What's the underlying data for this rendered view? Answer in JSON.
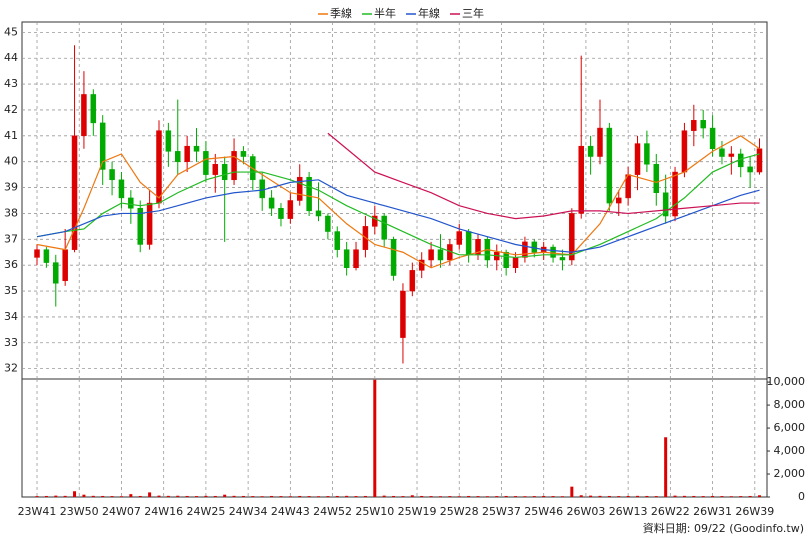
{
  "chart_data": {
    "type": "candlestick",
    "source": "資料日期: 09/22 (Goodinfo.tw)",
    "up_color": "#dd0000",
    "down_color": "#00aa00",
    "grid": true,
    "xlim": [
      -3.2,
      155.6
    ],
    "xticks": [
      {
        "value": 0,
        "label": "23W41"
      },
      {
        "value": 9,
        "label": "23W50"
      },
      {
        "value": 18,
        "label": "24W07"
      },
      {
        "value": 27,
        "label": "24W16"
      },
      {
        "value": 36,
        "label": "24W25"
      },
      {
        "value": 45,
        "label": "24W34"
      },
      {
        "value": 54,
        "label": "24W43"
      },
      {
        "value": 63,
        "label": "24W52"
      },
      {
        "value": 72,
        "label": "25W10"
      },
      {
        "value": 81,
        "label": "25W19"
      },
      {
        "value": 90,
        "label": "25W28"
      },
      {
        "value": 99,
        "label": "25W37"
      },
      {
        "value": 108,
        "label": "25W46"
      },
      {
        "value": 117,
        "label": "26W03"
      },
      {
        "value": 126,
        "label": "26W13"
      },
      {
        "value": 135,
        "label": "26W22"
      },
      {
        "value": 144,
        "label": "26W31"
      },
      {
        "value": 153,
        "label": "26W39"
      }
    ],
    "ylim": [
      31.6,
      45.4
    ],
    "yticks": [
      32,
      33,
      34,
      35,
      36,
      37,
      38,
      39,
      40,
      41,
      42,
      43,
      44,
      45
    ],
    "x": [
      0,
      2,
      4,
      6,
      8,
      10,
      12,
      14,
      16,
      18,
      20,
      22,
      24,
      26,
      28,
      30,
      32,
      34,
      36,
      38,
      40,
      42,
      44,
      46,
      48,
      50,
      52,
      54,
      56,
      58,
      60,
      62,
      64,
      66,
      68,
      70,
      72,
      74,
      76,
      78,
      80,
      82,
      84,
      86,
      88,
      90,
      92,
      94,
      96,
      98,
      100,
      102,
      104,
      106,
      108,
      110,
      112,
      114,
      116,
      118,
      120,
      122,
      124,
      126,
      128,
      130,
      132,
      134,
      136,
      138,
      140,
      142,
      144,
      146,
      148,
      150,
      152,
      154
    ],
    "open": [
      36.3,
      36.6,
      36.1,
      35.4,
      36.6,
      41.0,
      42.6,
      41.5,
      39.7,
      39.3,
      38.6,
      38.2,
      36.8,
      38.4,
      41.2,
      40.4,
      40.0,
      40.6,
      40.4,
      39.5,
      39.9,
      39.3,
      40.4,
      40.2,
      39.3,
      38.6,
      38.2,
      37.8,
      38.5,
      39.4,
      38.1,
      37.9,
      37.3,
      36.6,
      35.9,
      36.6,
      37.5,
      37.9,
      37.0,
      33.2,
      35.0,
      35.8,
      36.2,
      36.6,
      36.2,
      36.8,
      37.3,
      36.4,
      37.0,
      36.2,
      36.5,
      35.9,
      36.3,
      36.9,
      36.5,
      36.7,
      36.3,
      36.2,
      38.0,
      40.6,
      40.2,
      41.3,
      38.4,
      38.6,
      39.5,
      40.7,
      39.9,
      38.8,
      37.9,
      39.6,
      41.2,
      41.6,
      41.3,
      40.5,
      40.2,
      40.3,
      39.8,
      39.6
    ],
    "high": [
      36.8,
      36.7,
      36.4,
      37.4,
      44.5,
      43.5,
      42.8,
      41.8,
      40.0,
      39.6,
      38.9,
      38.5,
      38.9,
      41.6,
      41.5,
      42.4,
      41.0,
      41.3,
      40.8,
      40.3,
      40.2,
      40.9,
      40.6,
      40.3,
      39.6,
      38.9,
      38.4,
      38.8,
      39.9,
      39.6,
      39.2,
      38.0,
      37.5,
      36.9,
      36.9,
      37.9,
      38.3,
      38.0,
      37.1,
      35.3,
      36.1,
      36.5,
      36.9,
      37.2,
      37.0,
      37.6,
      37.4,
      37.2,
      37.1,
      36.8,
      36.6,
      36.5,
      37.1,
      37.0,
      36.9,
      36.8,
      36.6,
      38.2,
      44.1,
      41.0,
      42.4,
      41.5,
      38.9,
      39.8,
      41.0,
      41.2,
      40.3,
      39.5,
      39.8,
      41.5,
      42.2,
      42.0,
      41.8,
      40.8,
      40.6,
      40.5,
      40.2,
      40.9
    ],
    "low": [
      36.0,
      35.9,
      34.4,
      35.2,
      36.5,
      40.5,
      41.0,
      39.1,
      38.7,
      38.2,
      37.6,
      36.5,
      36.6,
      38.2,
      39.8,
      39.5,
      39.6,
      40.0,
      39.2,
      38.8,
      36.9,
      39.1,
      39.9,
      38.9,
      38.1,
      37.9,
      37.5,
      37.6,
      38.3,
      37.9,
      37.7,
      37.0,
      36.3,
      35.6,
      35.8,
      36.3,
      37.2,
      36.7,
      35.4,
      32.2,
      34.8,
      35.5,
      35.9,
      35.9,
      36.0,
      36.6,
      36.1,
      36.2,
      35.9,
      35.8,
      35.6,
      35.7,
      36.1,
      36.3,
      36.2,
      36.1,
      35.8,
      36.0,
      37.8,
      39.5,
      39.9,
      38.1,
      37.9,
      38.3,
      38.9,
      39.6,
      38.3,
      37.6,
      37.7,
      39.4,
      40.6,
      40.9,
      40.2,
      39.9,
      39.5,
      39.4,
      39.0,
      39.5
    ],
    "close": [
      36.6,
      36.1,
      35.3,
      36.6,
      41.0,
      42.6,
      41.5,
      39.7,
      39.3,
      38.6,
      38.2,
      36.8,
      38.4,
      41.2,
      40.4,
      40.0,
      40.6,
      40.4,
      39.5,
      39.9,
      39.3,
      40.4,
      40.2,
      39.3,
      38.6,
      38.2,
      37.8,
      38.5,
      39.4,
      38.1,
      37.9,
      37.3,
      36.6,
      35.9,
      36.6,
      37.5,
      37.9,
      37.0,
      35.6,
      35.0,
      35.8,
      36.2,
      36.6,
      36.2,
      36.8,
      37.3,
      36.4,
      37.0,
      36.2,
      36.5,
      35.9,
      36.3,
      36.9,
      36.5,
      36.7,
      36.3,
      36.2,
      38.0,
      40.6,
      40.2,
      41.3,
      38.4,
      38.6,
      39.5,
      40.7,
      39.9,
      38.8,
      37.9,
      39.6,
      41.2,
      41.6,
      41.3,
      40.5,
      40.2,
      40.3,
      39.8,
      39.6,
      40.5
    ],
    "series": [
      {
        "name": "季線",
        "color": "#ee7711",
        "x": [
          0,
          6,
          10,
          14,
          18,
          22,
          26,
          30,
          36,
          42,
          48,
          54,
          60,
          66,
          72,
          78,
          84,
          90,
          96,
          102,
          108,
          114,
          120,
          126,
          132,
          138,
          144,
          150,
          154
        ],
        "values": [
          36.8,
          36.6,
          38.2,
          40,
          40.3,
          39.2,
          38.6,
          39.5,
          40.1,
          40.2,
          39.5,
          38.8,
          38.6,
          37.6,
          36.8,
          36.5,
          35.9,
          36.3,
          36.6,
          36.4,
          36.5,
          36.4,
          37.6,
          39.5,
          39.2,
          39.6,
          40.4,
          41,
          40.5
        ]
      },
      {
        "name": "半年",
        "color": "#22bb22",
        "x": [
          0,
          6,
          10,
          14,
          18,
          22,
          26,
          30,
          36,
          42,
          48,
          54,
          60,
          66,
          72,
          78,
          84,
          90,
          96,
          102,
          108,
          114,
          120,
          126,
          132,
          138,
          144,
          150,
          154
        ],
        "values": [
          37.1,
          37.3,
          37.4,
          38,
          38.4,
          38.3,
          38.4,
          38.8,
          39.3,
          39.6,
          39.6,
          39.3,
          38.9,
          38.3,
          37.8,
          37.3,
          36.8,
          36.4,
          36.4,
          36.3,
          36.4,
          36.4,
          36.8,
          37.3,
          37.8,
          38.6,
          39.6,
          40.1,
          40.3
        ]
      },
      {
        "name": "年線",
        "color": "#2255cc",
        "x": [
          0,
          6,
          10,
          14,
          18,
          22,
          26,
          30,
          36,
          42,
          48,
          54,
          60,
          66,
          72,
          78,
          84,
          90,
          96,
          102,
          108,
          114,
          120,
          126,
          132,
          138,
          144,
          150,
          154
        ],
        "values": [
          37.1,
          37.3,
          37.6,
          37.9,
          38,
          38,
          38.1,
          38.3,
          38.6,
          38.8,
          38.9,
          39.2,
          39.3,
          38.7,
          38.4,
          38.1,
          37.8,
          37.4,
          37.1,
          36.8,
          36.6,
          36.5,
          36.7,
          37.1,
          37.5,
          37.9,
          38.3,
          38.7,
          38.9
        ]
      },
      {
        "name": "三年",
        "color": "#cc1155",
        "x": [
          62,
          66,
          72,
          78,
          84,
          90,
          96,
          102,
          108,
          114,
          120,
          126,
          132,
          138,
          144,
          150,
          154
        ],
        "values": [
          41.1,
          40.5,
          39.6,
          39.2,
          38.8,
          38.3,
          38,
          37.8,
          37.9,
          38.1,
          38.1,
          38.0,
          38.1,
          38.2,
          38.3,
          38.4,
          38.4
        ]
      }
    ],
    "volume": {
      "color": "#dd0000",
      "ylim": [
        0,
        10270
      ],
      "yticks": [
        0,
        {
          "value": 2000,
          "label": "2,000"
        },
        {
          "value": 4000,
          "label": "4,000"
        },
        {
          "value": 6000,
          "label": "6,000"
        },
        {
          "value": 8000,
          "label": "8,000"
        },
        {
          "value": 10000,
          "label": "10,000"
        }
      ],
      "values": [
        80,
        90,
        120,
        100,
        500,
        200,
        100,
        90,
        80,
        70,
        250,
        90,
        400,
        120,
        100,
        110,
        90,
        80,
        100,
        90,
        200,
        100,
        90,
        80,
        70,
        90,
        80,
        70,
        90,
        80,
        70,
        80,
        90,
        100,
        80,
        90,
        10200,
        120,
        90,
        80,
        150,
        90,
        80,
        70,
        80,
        70,
        90,
        80,
        70,
        80,
        90,
        80,
        70,
        80,
        90,
        80,
        70,
        900,
        150,
        120,
        100,
        90,
        80,
        90,
        100,
        90,
        80,
        5200,
        120,
        100,
        90,
        80,
        90,
        80,
        70,
        80,
        90,
        150
      ]
    }
  }
}
